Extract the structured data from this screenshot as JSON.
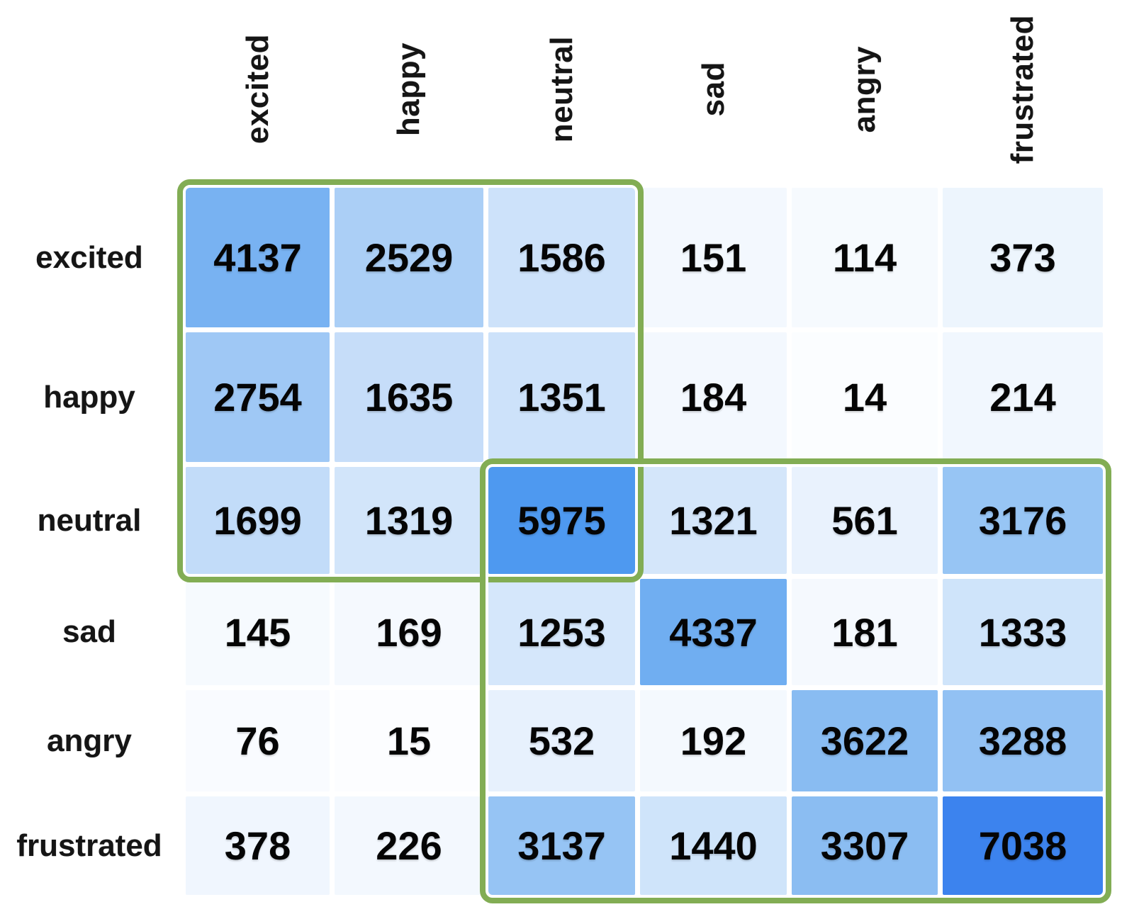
{
  "chart_data": {
    "type": "heatmap",
    "title": "",
    "x_categories": [
      "excited",
      "happy",
      "neutral",
      "sad",
      "angry",
      "frustrated"
    ],
    "y_categories": [
      "excited",
      "happy",
      "neutral",
      "sad",
      "angry",
      "frustrated"
    ],
    "values": [
      [
        4137,
        2529,
        1586,
        151,
        114,
        373
      ],
      [
        2754,
        1635,
        1351,
        184,
        14,
        214
      ],
      [
        1699,
        1319,
        5975,
        1321,
        561,
        3176
      ],
      [
        145,
        169,
        1253,
        4337,
        181,
        1333
      ],
      [
        76,
        15,
        532,
        192,
        3622,
        3288
      ],
      [
        378,
        226,
        3137,
        1440,
        3307,
        7038
      ]
    ],
    "value_min": 14,
    "value_max": 7038,
    "colormap_low": "#fcfdff",
    "colormap_high": "#3c83ee",
    "cell_colors": [
      [
        "#78b2f2",
        "#abcff6",
        "#cde2fa",
        "#f3f8fe",
        "#f6fafe",
        "#edf5fd"
      ],
      [
        "#9fc8f5",
        "#c6ddf9",
        "#cde2fa",
        "#f3f8fe",
        "#fbfdff",
        "#f1f7fe"
      ],
      [
        "#c2dcf9",
        "#d2e5fa",
        "#4e99f0",
        "#d4e6fa",
        "#e9f2fd",
        "#97c5f4"
      ],
      [
        "#f6fafe",
        "#f5f9fe",
        "#d5e7fb",
        "#70aef1",
        "#f5f9fe",
        "#cfe4fa"
      ],
      [
        "#f9fbff",
        "#fcfdff",
        "#e7f1fd",
        "#f4f9fe",
        "#89bcf2",
        "#92c1f3"
      ],
      [
        "#f0f6fe",
        "#f3f8fe",
        "#96c4f4",
        "#cfe4fa",
        "#8bbdf2",
        "#3c83ee"
      ]
    ],
    "highlight_box_color": "#82ad54",
    "highlight_blocks": [
      {
        "rows": "excited-neutral",
        "cols": "excited-neutral"
      },
      {
        "rows": "neutral-frustrated",
        "cols": "neutral-frustrated"
      }
    ],
    "grid": "white gaps between cells",
    "legend": "none"
  }
}
